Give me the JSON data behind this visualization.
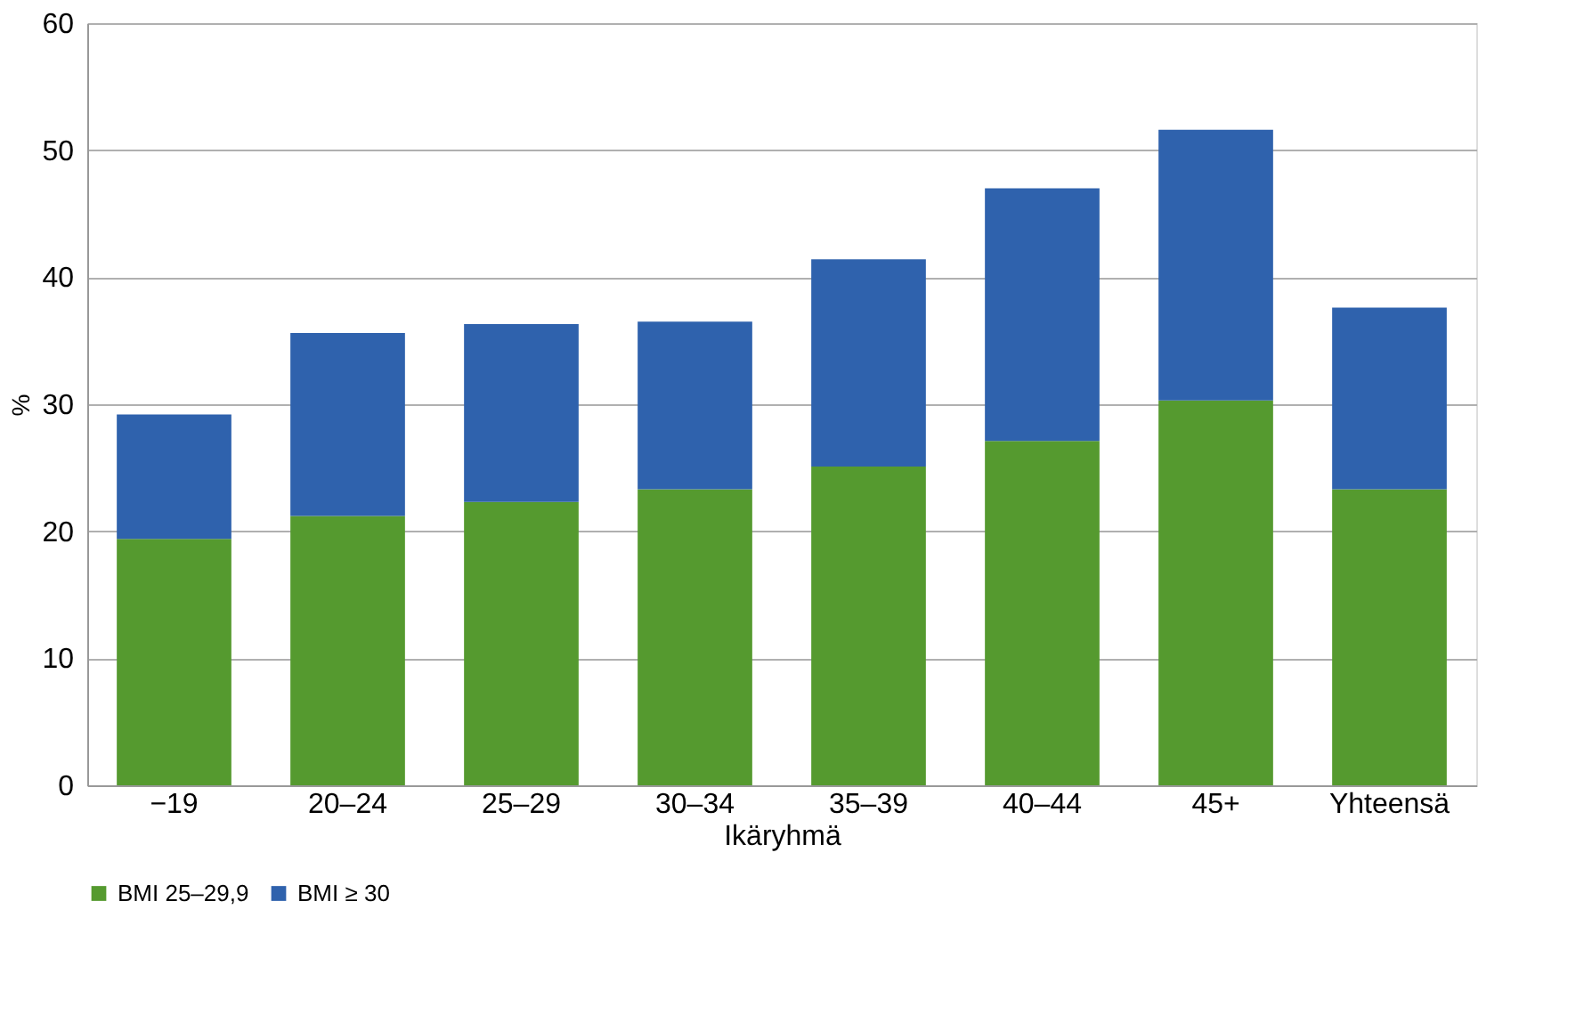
{
  "chart_data": {
    "type": "bar",
    "stacked": true,
    "xlabel": "Ikäryhmä",
    "ylabel": "%",
    "categories": [
      "−19",
      "20–24",
      "25–29",
      "30–34",
      "35–39",
      "40–44",
      "45+",
      "Yhteensä"
    ],
    "series": [
      {
        "name": "BMI 25–29,9",
        "color": "#559a2f",
        "values": [
          19.4,
          21.2,
          22.3,
          23.3,
          25.1,
          27.1,
          30.3,
          23.3
        ]
      },
      {
        "name": "BMI ≥ 30",
        "color": "#2f62ad",
        "values": [
          9.8,
          14.4,
          14.0,
          13.2,
          16.3,
          19.9,
          21.3,
          14.3
        ]
      }
    ],
    "ylim": [
      0,
      60
    ],
    "yticks": [
      0,
      10,
      20,
      30,
      40,
      50,
      60
    ],
    "grid": "y",
    "legend": "bottom"
  }
}
